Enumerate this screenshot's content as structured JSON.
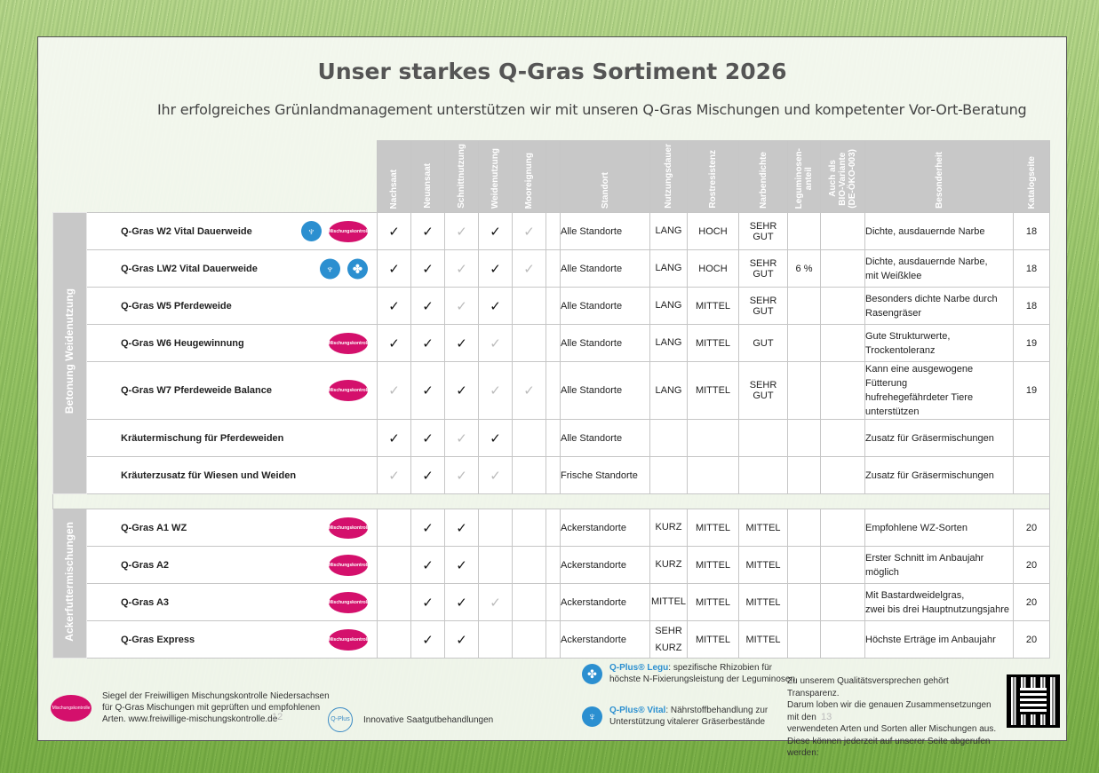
{
  "title": "Unser starkes Q-Gras Sortiment 2026",
  "subtitle": "Ihr erfolgreiches Grünlandmanagement unterstützen wir mit unseren  Q-Gras Mischungen und kompetenter Vor-Ort-Beratung",
  "headers": {
    "nachsaat": "Nachsaat",
    "neuansaat": "Neuansaat",
    "schnitt": "Schnittnutzung",
    "weide": "Weidenutzung",
    "moor": "Mooreignung",
    "standort": "Standort",
    "dauer": "Nutzungsdauer",
    "rost": "Rostresistenz",
    "narbe": "Narbendichte",
    "legu1": "Leguminosen-",
    "legu2": "anteil",
    "bio1": "Auch als",
    "bio2": "BIO-Variante",
    "bio3": "(DE-ÖKO-003)",
    "besonder": "Besonderheit",
    "katalog": "Katalogseite"
  },
  "groups": {
    "weide": "Betonung Weidenutzung",
    "acker": "Ackerfuttermischungen"
  },
  "seal_text": "Mischungskontrolle",
  "check": "✓",
  "rows": [
    {
      "name": "Q-Gras W2 Vital Dauerweide",
      "c": [
        "b",
        "b",
        "g",
        "b",
        "g",
        ""
      ],
      "standort": "Alle Standorte",
      "dauer": "LANG",
      "rost": "HOCH",
      "narbe": "SEHR GUT",
      "legu": "",
      "note1": "Dichte, ausdauernde Narbe",
      "note2": "",
      "page": "18"
    },
    {
      "name": "Q-Gras LW2 Vital Dauerweide",
      "c": [
        "b",
        "b",
        "g",
        "b",
        "g",
        ""
      ],
      "standort": "Alle Standorte",
      "dauer": "LANG",
      "rost": "HOCH",
      "narbe": "SEHR GUT",
      "legu": "6 %",
      "note1": "Dichte, ausdauernde Narbe,",
      "note2": "mit Weißklee",
      "page": "18"
    },
    {
      "name": "Q-Gras W5 Pferdeweide",
      "c": [
        "b",
        "b",
        "g",
        "b",
        "",
        ""
      ],
      "standort": "Alle Standorte",
      "dauer": "LANG",
      "rost": "MITTEL",
      "narbe": "SEHR GUT",
      "legu": "",
      "note1": "Besonders dichte Narbe durch",
      "note2": "Rasengräser",
      "page": "18"
    },
    {
      "name": "Q-Gras W6 Heugewinnung",
      "c": [
        "b",
        "b",
        "b",
        "g",
        "",
        ""
      ],
      "standort": "Alle Standorte",
      "dauer": "LANG",
      "rost": "MITTEL",
      "narbe": "GUT",
      "legu": "",
      "note1": "Gute Strukturwerte,",
      "note2": "Trockentoleranz",
      "page": "19"
    },
    {
      "name": "Q-Gras W7 Pferdeweide Balance",
      "c": [
        "g",
        "b",
        "b",
        "g",
        "g",
        ""
      ],
      "standort": "Alle Standorte",
      "dauer": "LANG",
      "rost": "MITTEL",
      "narbe": "SEHR GUT",
      "legu": "",
      "note1": "Kann eine ausgewogene Fütterung",
      "note2": "hufrehegefährdeter Tiere unterstützen",
      "page": "19"
    },
    {
      "name": "Kräutermischung für Pferdeweiden",
      "c": [
        "b",
        "b",
        "g",
        "b",
        "",
        ""
      ],
      "standort": "Alle Standorte",
      "dauer": "",
      "rost": "",
      "narbe": "",
      "legu": "",
      "note1": "Zusatz für Gräsermischungen",
      "note2": "",
      "page": ""
    },
    {
      "name": "Kräuterzusatz für Wiesen und Weiden",
      "c": [
        "g",
        "b",
        "g",
        "g",
        "",
        ""
      ],
      "standort": "Frische Standorte",
      "dauer": "",
      "rost": "",
      "narbe": "",
      "legu": "",
      "note1": "Zusatz für Gräsermischungen",
      "note2": "",
      "page": ""
    }
  ],
  "rows2": [
    {
      "name": "Q-Gras A1 WZ",
      "c": [
        "",
        "b",
        "b",
        "",
        "",
        ""
      ],
      "standort": "Ackerstandorte",
      "dauer": "KURZ",
      "rost": "MITTEL",
      "narbe": "MITTEL",
      "note1": "Empfohlene WZ-Sorten",
      "note2": "",
      "page": "20"
    },
    {
      "name": "Q-Gras A2",
      "c": [
        "",
        "b",
        "b",
        "",
        "",
        ""
      ],
      "standort": "Ackerstandorte",
      "dauer": "KURZ",
      "rost": "MITTEL",
      "narbe": "MITTEL",
      "note1": "Erster Schnitt im Anbaujahr",
      "note2": "möglich",
      "page": "20"
    },
    {
      "name": "Q-Gras A3",
      "c": [
        "",
        "b",
        "b",
        "g",
        "",
        ""
      ],
      "standort": "Ackerstandorte",
      "dauer": "MITTEL",
      "rost": "MITTEL",
      "narbe": "MITTEL",
      "note1": "Mit Bastardweidelgras,",
      "note2": "zwei bis drei Hauptnutzungsjahre",
      "page": "20"
    },
    {
      "name": "Q-Gras Express",
      "c": [
        "",
        "b",
        "b",
        "",
        "",
        ""
      ],
      "standort": "Ackerstandorte",
      "dauer": "SEHR KURZ",
      "rost": "MITTEL",
      "narbe": "MITTEL",
      "note1": "Höchste Erträge im Anbaujahr",
      "note2": "",
      "page": "20"
    }
  ],
  "footer": {
    "seal_line1": "Siegel der Freiwilligen Mischungskontrolle Niedersachsen",
    "seal_line2": "für Q-Gras Mischungen mit geprüften und empfohlenen",
    "seal_line3": "Arten. www.freiwillige-mischungskontrolle.de",
    "qplus_ring": "Q-Plus",
    "qplus_text": "Innovative Saatgutbehandlungen",
    "legu_title": "Q-Plus® Legu",
    "legu_text1": ": spezifische Rhizobien für",
    "legu_text2": "höchste N-Fixierungsleistung der Leguminosen",
    "vital_title": "Q-Plus® Vital",
    "vital_text1": ": Nährstoffbehandlung zur",
    "vital_text2": "Unterstützung vitalerer Gräserbestände",
    "transp1": "Zu unserem Qualitätsversprechen gehört Transparenz.",
    "transp2": "Darum loben wir die genauen Zusammensetzungen mit den",
    "transp3": "verwendeten Arten und Sorten aller Mischungen aus.",
    "transp4": "Diese können jederzeit auf unserer Seite abgerufen werden:",
    "page_left": "12",
    "page_right": "13"
  }
}
